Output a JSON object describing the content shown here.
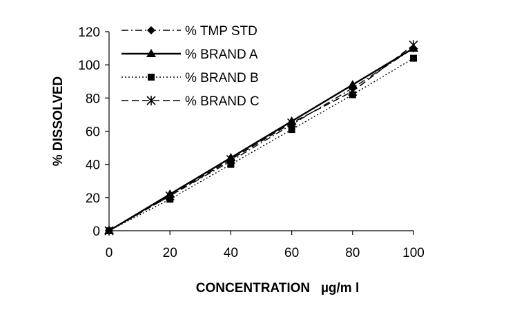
{
  "chart_data": {
    "type": "line",
    "title": "",
    "xlabel": "CONCENTRATION   µg/m l",
    "ylabel": "% DISSOLVED",
    "x": [
      0,
      20,
      40,
      60,
      80,
      100
    ],
    "xlim": [
      0,
      100
    ],
    "ylim": [
      0,
      120
    ],
    "xticks": [
      "0",
      "20",
      "40",
      "60",
      "80",
      "100"
    ],
    "yticks": [
      "0",
      "20",
      "40",
      "60",
      "80",
      "100",
      "120"
    ],
    "grid": false,
    "legend_position": "top-left",
    "series": [
      {
        "name": "% TMP STD",
        "marker": "diamond",
        "dash": "dashdot",
        "values": [
          0,
          21,
          42,
          64,
          86,
          110
        ]
      },
      {
        "name": "% BRAND A",
        "marker": "triangle",
        "dash": "solid",
        "values": [
          0,
          22,
          44,
          66,
          88,
          110
        ]
      },
      {
        "name": "% BRAND B",
        "marker": "square",
        "dash": "dotted",
        "values": [
          0,
          19,
          40,
          61,
          82,
          104
        ]
      },
      {
        "name": "% BRAND C",
        "marker": "star",
        "dash": "dashed",
        "values": [
          0,
          21,
          43,
          65,
          84,
          112
        ]
      }
    ]
  },
  "colors": {
    "ink": "#000000",
    "background": "#ffffff"
  }
}
